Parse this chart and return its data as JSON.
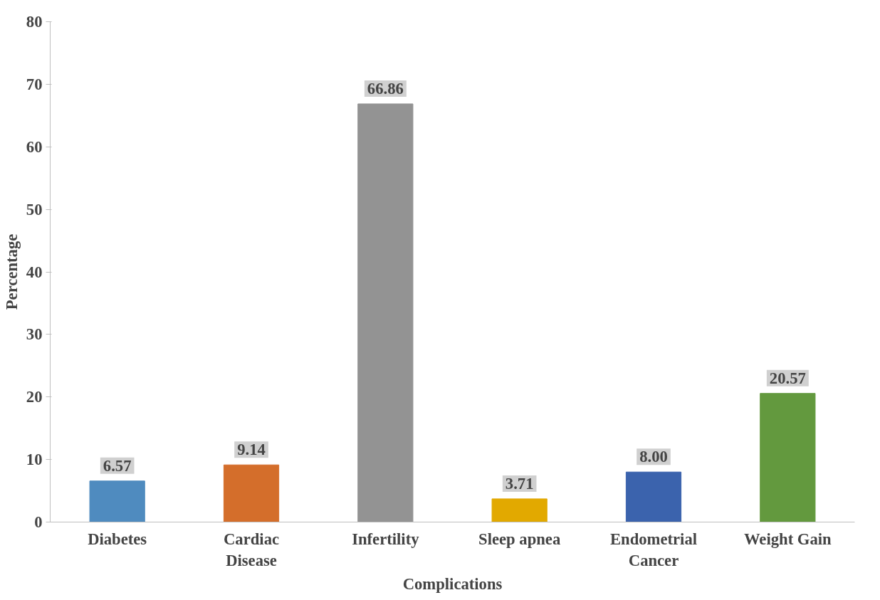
{
  "chart_data": {
    "type": "bar",
    "xlabel": "Complications",
    "ylabel": "Percentage",
    "categories": [
      "Diabetes",
      "Cardiac Disease",
      "Infertility",
      "Sleep apnea",
      "Endometrial Cancer",
      "Weight Gain"
    ],
    "values": [
      6.57,
      9.14,
      66.86,
      3.71,
      8.0,
      20.57
    ],
    "value_labels": [
      "6.57",
      "9.14",
      "66.86",
      "3.71",
      "8.00",
      "20.57"
    ],
    "colors": [
      "#4f8bbf",
      "#d46e2b",
      "#939393",
      "#e2a900",
      "#3b63ad",
      "#63993e"
    ],
    "ylim": [
      0,
      80
    ],
    "yticks": [
      0,
      10,
      20,
      30,
      40,
      50,
      60,
      70,
      80
    ],
    "grid": false
  }
}
